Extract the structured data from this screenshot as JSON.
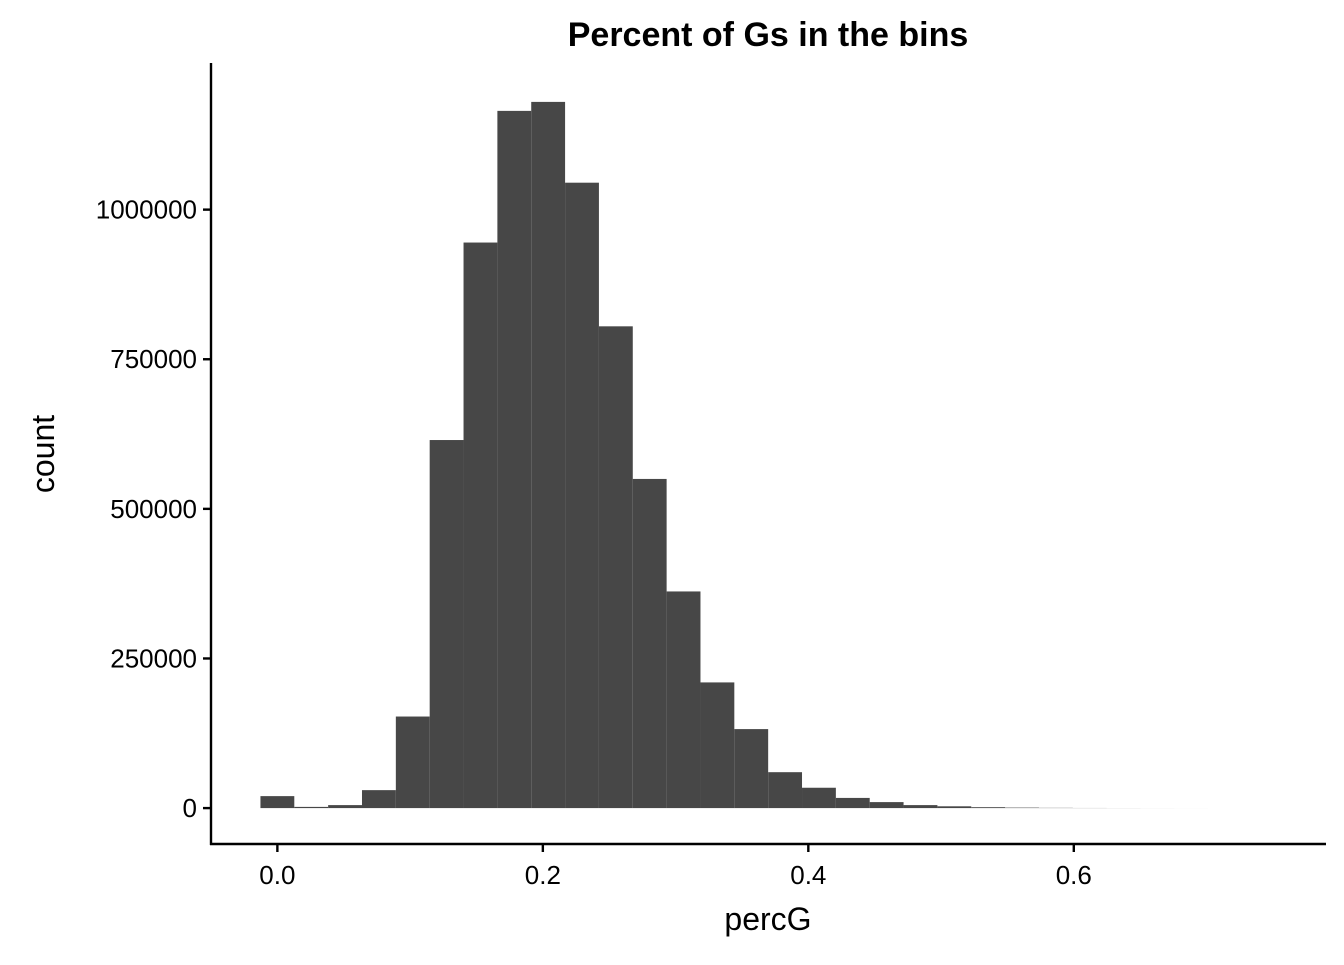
{
  "chart_data": {
    "type": "bar",
    "title": "Percent of Gs in the bins",
    "xlabel": "percG",
    "ylabel": "count",
    "xlim": [
      -0.05,
      0.79
    ],
    "ylim": [
      -60000,
      1245000
    ],
    "x_ticks": [
      0.0,
      0.2,
      0.4,
      0.6
    ],
    "x_tick_labels": [
      "0.0",
      "0.2",
      "0.4",
      "0.6"
    ],
    "y_ticks": [
      0,
      250000,
      500000,
      750000,
      1000000
    ],
    "y_tick_labels": [
      "0",
      "250000",
      "500000",
      "750000",
      "1000000"
    ],
    "bar_color": "#474747",
    "grid": false,
    "bin_width": 0.0255,
    "bins": [
      {
        "x": 0.0,
        "count": 20000
      },
      {
        "x": 0.0255,
        "count": 2000
      },
      {
        "x": 0.051,
        "count": 5000
      },
      {
        "x": 0.0765,
        "count": 30000
      },
      {
        "x": 0.102,
        "count": 153000
      },
      {
        "x": 0.1275,
        "count": 615000
      },
      {
        "x": 0.153,
        "count": 945000
      },
      {
        "x": 0.1785,
        "count": 1165000
      },
      {
        "x": 0.204,
        "count": 1180000
      },
      {
        "x": 0.2295,
        "count": 1045000
      },
      {
        "x": 0.255,
        "count": 805000
      },
      {
        "x": 0.2805,
        "count": 550000
      },
      {
        "x": 0.306,
        "count": 362000
      },
      {
        "x": 0.3315,
        "count": 210000
      },
      {
        "x": 0.357,
        "count": 132000
      },
      {
        "x": 0.3825,
        "count": 60000
      },
      {
        "x": 0.408,
        "count": 34000
      },
      {
        "x": 0.4335,
        "count": 17000
      },
      {
        "x": 0.459,
        "count": 10000
      },
      {
        "x": 0.4845,
        "count": 5000
      },
      {
        "x": 0.51,
        "count": 3000
      },
      {
        "x": 0.5355,
        "count": 1500
      },
      {
        "x": 0.561,
        "count": 800
      },
      {
        "x": 0.5865,
        "count": 400
      },
      {
        "x": 0.612,
        "count": 200
      },
      {
        "x": 0.6375,
        "count": 100
      },
      {
        "x": 0.663,
        "count": 50
      },
      {
        "x": 0.6885,
        "count": 20
      }
    ]
  }
}
